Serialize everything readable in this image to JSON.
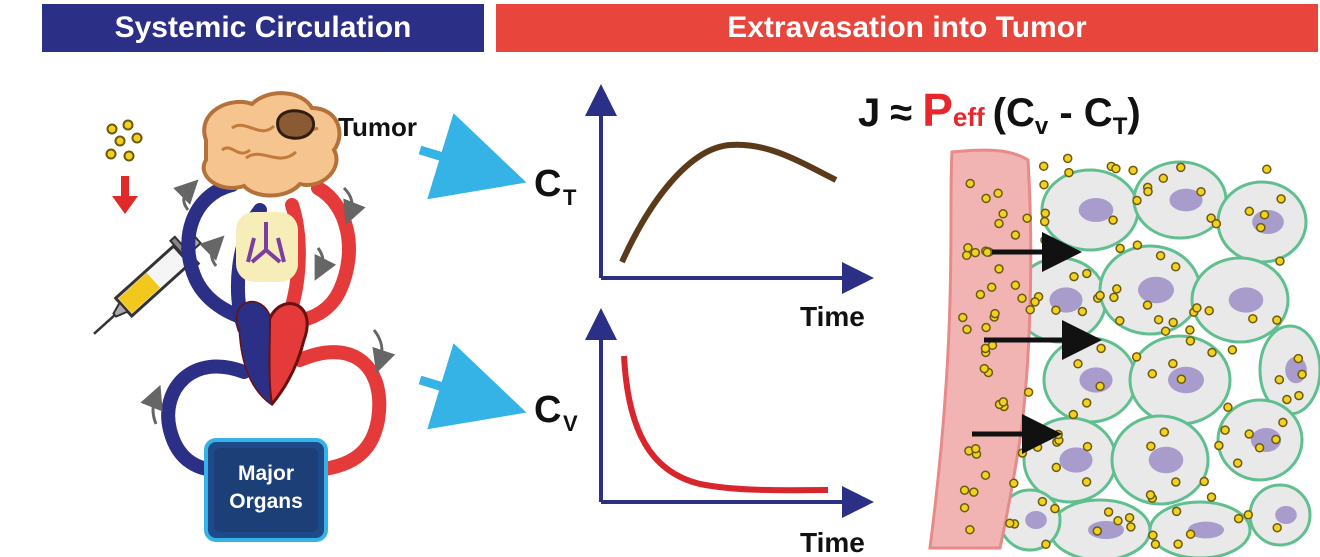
{
  "banners": {
    "left": "Systemic Circulation",
    "right": "Extravasation into Tumor"
  },
  "labels": {
    "tumor": "Tumor",
    "organs_line1": "Major",
    "organs_line2": "Organs",
    "time_top": "Time",
    "time_bottom": "Time",
    "ct_main": "C",
    "ct_sub": "T",
    "cv_main": "C",
    "cv_sub": "V"
  },
  "equation": {
    "j": "J",
    "approx": "≈",
    "p": "P",
    "p_sub": "eff",
    "open": "(C",
    "v_sub": "v",
    "minus": " - C",
    "t_sub": "T",
    "close": ")"
  },
  "colors": {
    "navy": "#2b2f86",
    "red": "#e8453c",
    "arrow_blue": "#36b3e6",
    "brown_curve": "#5b3a1a",
    "red_curve": "#d9262c",
    "cells": "#e9e9ea",
    "nucleus": "#a89ccc",
    "matrix": "#5fbf8f",
    "vessel": "#f1a9a8",
    "particle": "#f2d21c"
  }
}
